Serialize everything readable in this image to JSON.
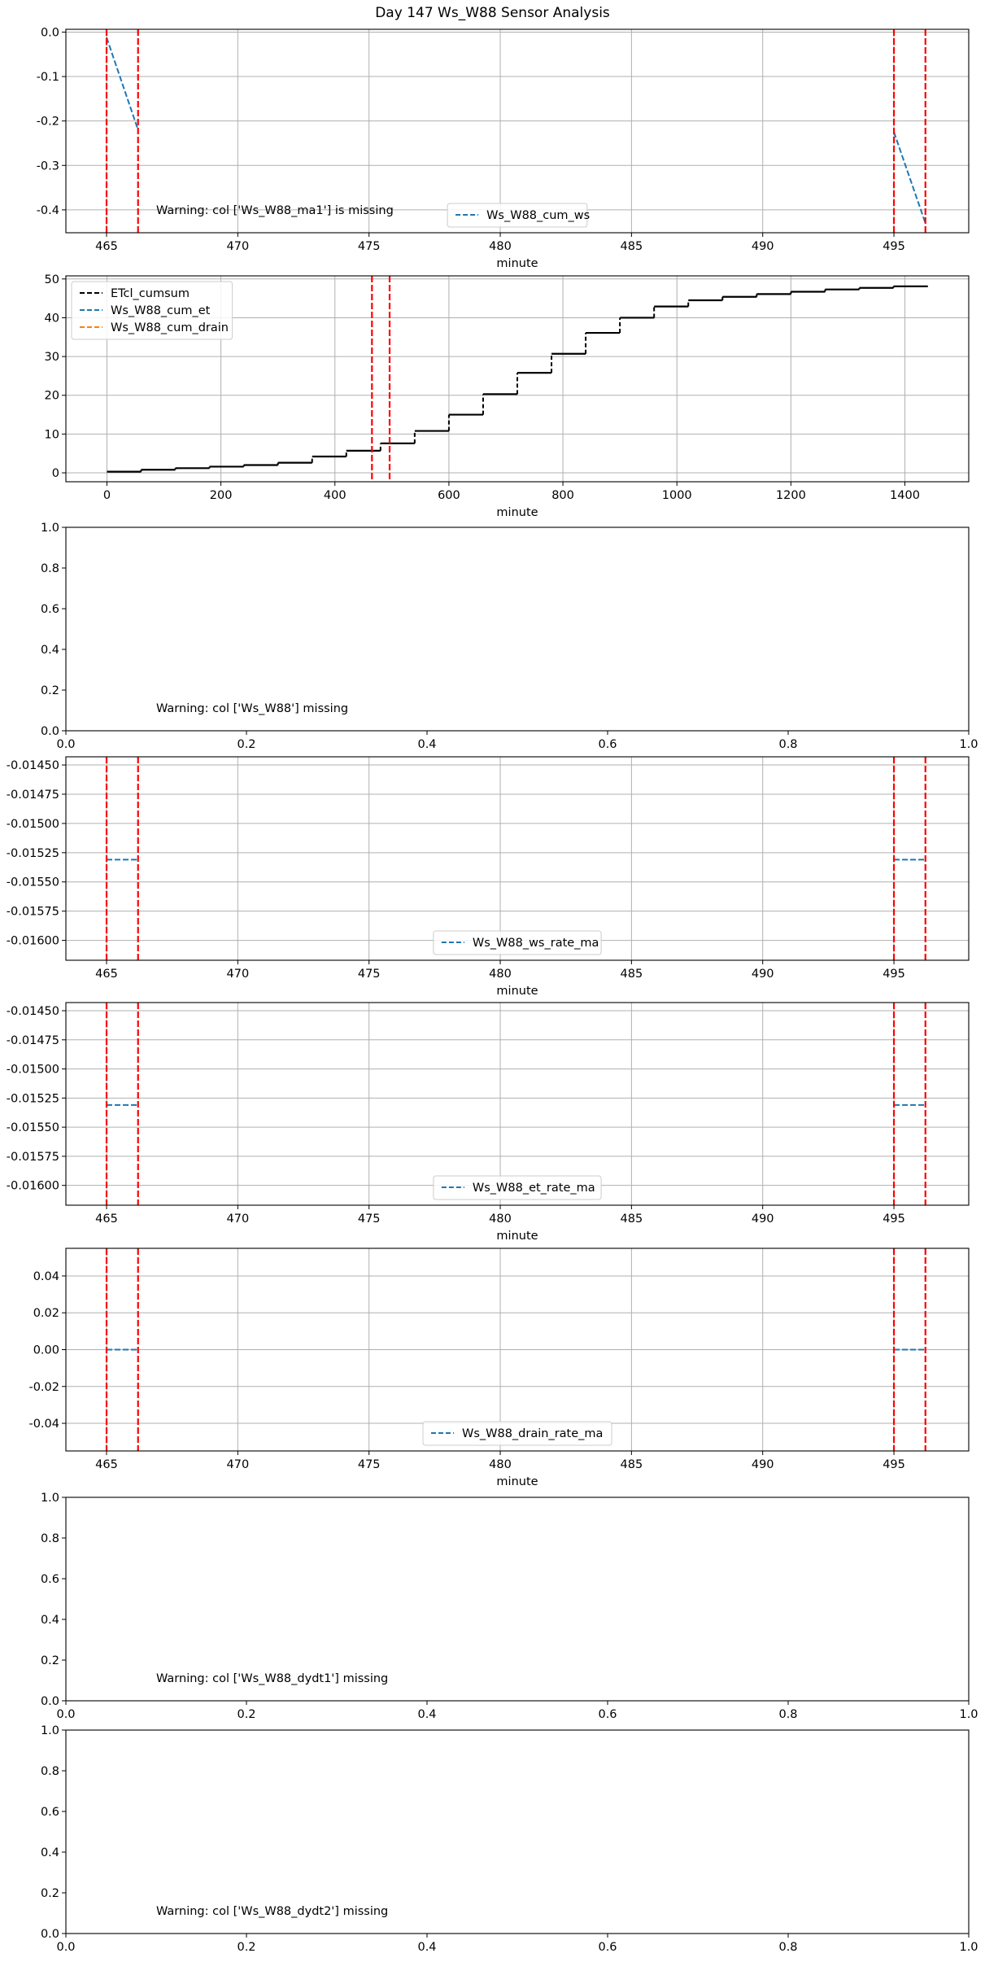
{
  "title": "Day 147 Ws_W88 Sensor Analysis",
  "colors": {
    "marker": "#ff0000",
    "series_blue": "#1f77b4",
    "series_orange": "#ff7f0e",
    "series_black": "#000000",
    "grid": "#b0b0b0"
  },
  "chart_data": [
    {
      "type": "line",
      "xlabel": "minute",
      "xlim": [
        463.45,
        497.85
      ],
      "ylim": [
        -0.4515,
        0.0063
      ],
      "xticks": [
        465,
        470,
        475,
        480,
        485,
        490,
        495
      ],
      "yticks": [
        0.0,
        -0.1,
        -0.2,
        -0.3,
        -0.4
      ],
      "ytick_labels": [
        "0.0",
        "-0.1",
        "-0.2",
        "-0.3",
        "-0.4"
      ],
      "grid": true,
      "vlines": [
        465,
        466.2,
        495,
        496.2
      ],
      "series": [
        {
          "name": "Ws_W88_cum_ws",
          "color": "#1f77b4",
          "style": "dashed",
          "segments": [
            [
              [
                465,
                -0.012
              ],
              [
                466.2,
                -0.22
              ]
            ],
            [
              [
                495,
                -0.225
              ],
              [
                496.2,
                -0.43
              ]
            ]
          ]
        }
      ],
      "legend": {
        "position": "lower center"
      },
      "annotation": "Warning: col ['Ws_W88_ma1'] is missing"
    },
    {
      "type": "line",
      "xlabel": "minute",
      "xlim": [
        -72,
        1512
      ],
      "ylim": [
        -2.3,
        50.8
      ],
      "xticks": [
        0,
        200,
        400,
        600,
        800,
        1000,
        1200,
        1400
      ],
      "yticks": [
        0,
        10,
        20,
        30,
        40,
        50
      ],
      "ytick_labels": [
        "0",
        "10",
        "20",
        "30",
        "40",
        "50"
      ],
      "grid": true,
      "vlines": [
        465,
        496
      ],
      "step_series": {
        "name": "ETcl_cumsum",
        "color": "#000000",
        "steps": [
          [
            0,
            0.3
          ],
          [
            60,
            0.8
          ],
          [
            120,
            1.2
          ],
          [
            180,
            1.6
          ],
          [
            240,
            2.0
          ],
          [
            300,
            2.6
          ],
          [
            360,
            4.2
          ],
          [
            420,
            5.7
          ],
          [
            480,
            7.6
          ],
          [
            540,
            10.8
          ],
          [
            600,
            15.0
          ],
          [
            660,
            20.3
          ],
          [
            720,
            25.8
          ],
          [
            780,
            30.7
          ],
          [
            840,
            36.1
          ],
          [
            900,
            40.0
          ],
          [
            960,
            42.9
          ],
          [
            1020,
            44.5
          ],
          [
            1080,
            45.4
          ],
          [
            1140,
            46.1
          ],
          [
            1200,
            46.7
          ],
          [
            1260,
            47.3
          ],
          [
            1320,
            47.7
          ],
          [
            1380,
            48.1
          ],
          [
            1440,
            48.1
          ]
        ]
      },
      "series": [
        {
          "name": "ETcl_cumsum",
          "color": "#000000",
          "style": "dashed"
        },
        {
          "name": "Ws_W88_cum_et",
          "color": "#1f77b4",
          "style": "dashed"
        },
        {
          "name": "Ws_W88_cum_drain",
          "color": "#ff7f0e",
          "style": "dashed"
        }
      ],
      "legend": {
        "position": "upper left"
      }
    },
    {
      "type": "empty",
      "xlim": [
        0,
        1
      ],
      "ylim": [
        0,
        1
      ],
      "xticks": [
        0.0,
        0.2,
        0.4,
        0.6,
        0.8,
        1.0
      ],
      "yticks": [
        0.0,
        0.2,
        0.4,
        0.6,
        0.8,
        1.0
      ],
      "xtick_labels": [
        "0.0",
        "0.2",
        "0.4",
        "0.6",
        "0.8",
        "1.0"
      ],
      "ytick_labels": [
        "0.0",
        "0.2",
        "0.4",
        "0.6",
        "0.8",
        "1.0"
      ],
      "grid": false,
      "annotation": "Warning: col ['Ws_W88'] missing"
    },
    {
      "type": "line",
      "xlabel": "minute",
      "xlim": [
        463.45,
        497.85
      ],
      "ylim": [
        -0.01617,
        -0.01443
      ],
      "xticks": [
        465,
        470,
        475,
        480,
        485,
        490,
        495
      ],
      "yticks": [
        -0.0145,
        -0.01475,
        -0.015,
        -0.01525,
        -0.0155,
        -0.01575,
        -0.016
      ],
      "ytick_labels": [
        "-0.01450",
        "-0.01475",
        "-0.01500",
        "-0.01525",
        "-0.01550",
        "-0.01575",
        "-0.01600"
      ],
      "grid": true,
      "vlines": [
        465,
        466.2,
        495,
        496.2
      ],
      "series": [
        {
          "name": "Ws_W88_ws_rate_ma",
          "color": "#1f77b4",
          "style": "dashed",
          "segments": [
            [
              [
                465,
                -0.01531
              ],
              [
                466.2,
                -0.01531
              ]
            ],
            [
              [
                495,
                -0.01531
              ],
              [
                496.2,
                -0.01531
              ]
            ]
          ]
        }
      ],
      "legend": {
        "position": "lower center"
      }
    },
    {
      "type": "line",
      "xlabel": "minute",
      "xlim": [
        463.45,
        497.85
      ],
      "ylim": [
        -0.01617,
        -0.01443
      ],
      "xticks": [
        465,
        470,
        475,
        480,
        485,
        490,
        495
      ],
      "yticks": [
        -0.0145,
        -0.01475,
        -0.015,
        -0.01525,
        -0.0155,
        -0.01575,
        -0.016
      ],
      "ytick_labels": [
        "-0.01450",
        "-0.01475",
        "-0.01500",
        "-0.01525",
        "-0.01550",
        "-0.01575",
        "-0.01600"
      ],
      "grid": true,
      "vlines": [
        465,
        466.2,
        495,
        496.2
      ],
      "series": [
        {
          "name": "Ws_W88_et_rate_ma",
          "color": "#1f77b4",
          "style": "dashed",
          "segments": [
            [
              [
                465,
                -0.01531
              ],
              [
                466.2,
                -0.01531
              ]
            ],
            [
              [
                495,
                -0.01531
              ],
              [
                496.2,
                -0.01531
              ]
            ]
          ]
        }
      ],
      "legend": {
        "position": "lower center"
      }
    },
    {
      "type": "line",
      "xlabel": "minute",
      "xlim": [
        463.45,
        497.85
      ],
      "ylim": [
        -0.055,
        0.055
      ],
      "xticks": [
        465,
        470,
        475,
        480,
        485,
        490,
        495
      ],
      "yticks": [
        0.04,
        0.02,
        0.0,
        -0.02,
        -0.04
      ],
      "ytick_labels": [
        "0.04",
        "0.02",
        "0.00",
        "-0.02",
        "-0.04"
      ],
      "grid": true,
      "vlines": [
        465,
        466.2,
        495,
        496.2
      ],
      "series": [
        {
          "name": "Ws_W88_drain_rate_ma",
          "color": "#1f77b4",
          "style": "dashed",
          "segments": [
            [
              [
                465,
                0.0
              ],
              [
                466.2,
                0.0
              ]
            ],
            [
              [
                495,
                0.0
              ],
              [
                496.2,
                0.0
              ]
            ]
          ]
        }
      ],
      "legend": {
        "position": "lower center"
      }
    },
    {
      "type": "empty",
      "xlim": [
        0,
        1
      ],
      "ylim": [
        0,
        1
      ],
      "xticks": [
        0.0,
        0.2,
        0.4,
        0.6,
        0.8,
        1.0
      ],
      "yticks": [
        0.0,
        0.2,
        0.4,
        0.6,
        0.8,
        1.0
      ],
      "xtick_labels": [
        "0.0",
        "0.2",
        "0.4",
        "0.6",
        "0.8",
        "1.0"
      ],
      "ytick_labels": [
        "0.0",
        "0.2",
        "0.4",
        "0.6",
        "0.8",
        "1.0"
      ],
      "grid": false,
      "annotation": "Warning: col ['Ws_W88_dydt1'] missing"
    },
    {
      "type": "empty",
      "xlim": [
        0,
        1
      ],
      "ylim": [
        0,
        1
      ],
      "xticks": [
        0.0,
        0.2,
        0.4,
        0.6,
        0.8,
        1.0
      ],
      "yticks": [
        0.0,
        0.2,
        0.4,
        0.6,
        0.8,
        1.0
      ],
      "xtick_labels": [
        "0.0",
        "0.2",
        "0.4",
        "0.6",
        "0.8",
        "1.0"
      ],
      "ytick_labels": [
        "0.0",
        "0.2",
        "0.4",
        "0.6",
        "0.8",
        "1.0"
      ],
      "grid": false,
      "annotation": "Warning: col ['Ws_W88_dydt2'] missing"
    }
  ]
}
